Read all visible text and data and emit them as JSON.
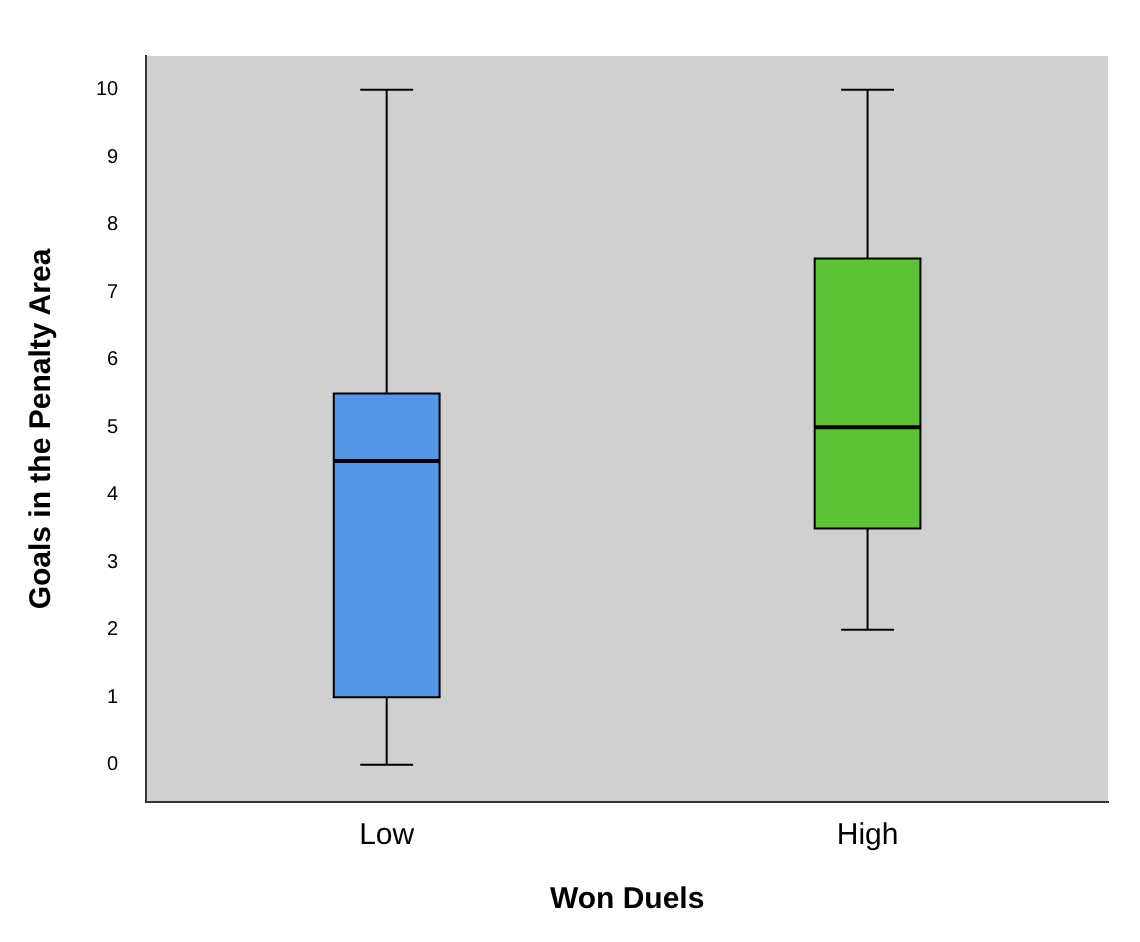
{
  "chart_data": {
    "type": "box",
    "xlabel": "Won Duels",
    "ylabel": "Goals in the Penalty Area",
    "categories": [
      "Low",
      "High"
    ],
    "boxes": [
      {
        "low": 0,
        "q1": 1,
        "median": 4.5,
        "q3": 5.5,
        "high": 10
      },
      {
        "low": 2,
        "q1": 3.5,
        "median": 5,
        "q3": 7.5,
        "high": 10
      }
    ],
    "colors": [
      "#5596e6",
      "#5ec236"
    ],
    "ylim": [
      -0.55,
      10.5
    ],
    "yticks": [
      0,
      1,
      2,
      3,
      4,
      5,
      6,
      7,
      8,
      9,
      10
    ],
    "grid": false,
    "legend": false
  }
}
